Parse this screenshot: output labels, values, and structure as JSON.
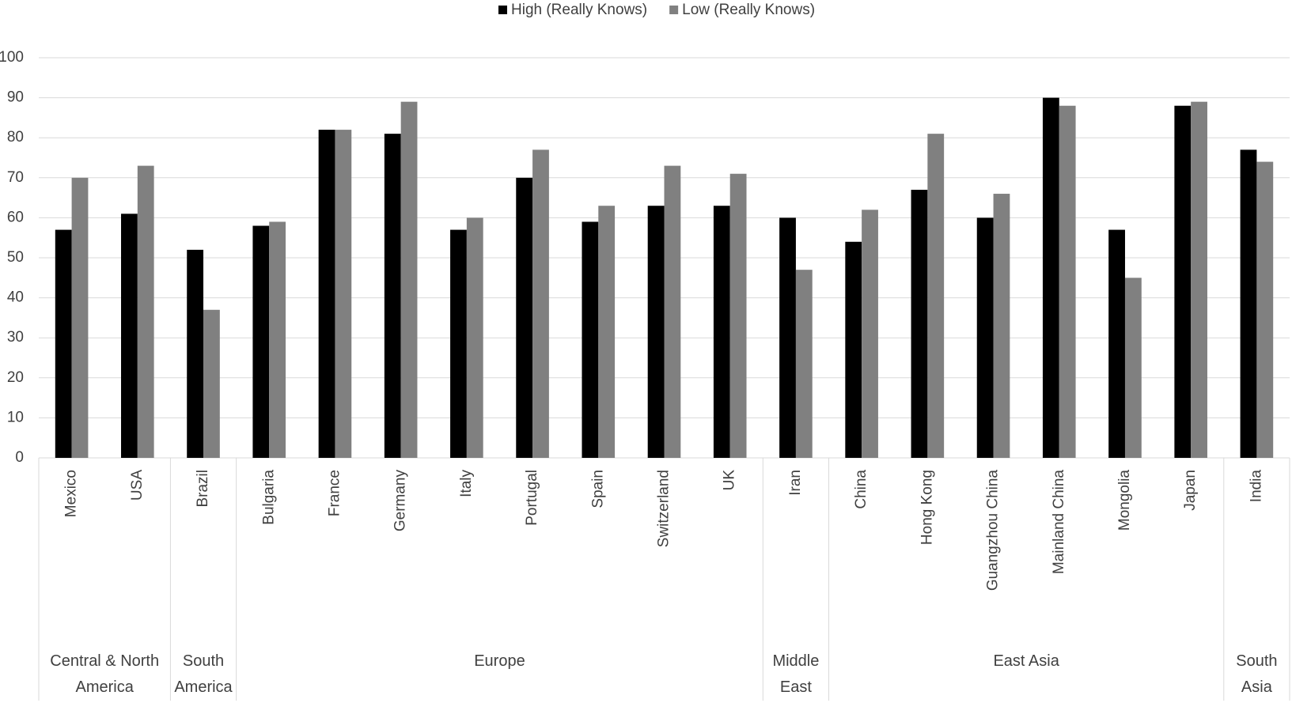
{
  "chart_data": {
    "type": "bar",
    "groups": [
      {
        "name": "Central & North America",
        "categories": [
          "Mexico",
          "USA"
        ]
      },
      {
        "name": "South America",
        "categories": [
          "Brazil"
        ]
      },
      {
        "name": "Europe",
        "categories": [
          "Bulgaria",
          "France",
          "Germany",
          "Italy",
          "Portugal",
          "Spain",
          "Switzerland",
          "UK"
        ]
      },
      {
        "name": "Middle East",
        "categories": [
          "Iran"
        ]
      },
      {
        "name": "East Asia",
        "categories": [
          "China",
          "Hong Kong",
          "Guangzhou China",
          "Mainland China",
          "Mongolia",
          "Japan"
        ]
      },
      {
        "name": "South Asia",
        "categories": [
          "India"
        ]
      }
    ],
    "series": [
      {
        "name": "High (Really Knows)",
        "color": "#000000",
        "values": [
          57,
          61,
          52,
          58,
          82,
          81,
          57,
          70,
          59,
          63,
          63,
          60,
          54,
          67,
          60,
          90,
          57,
          88,
          77
        ]
      },
      {
        "name": "Low (Really Knows)",
        "color": "#808080",
        "values": [
          70,
          73,
          37,
          59,
          82,
          89,
          60,
          77,
          63,
          73,
          71,
          47,
          62,
          81,
          66,
          88,
          45,
          89,
          74
        ]
      }
    ],
    "ylim": [
      0,
      100
    ],
    "yticks": [
      0,
      10,
      20,
      30,
      40,
      50,
      60,
      70,
      80,
      90,
      100
    ],
    "grid": true,
    "legend": "top"
  }
}
